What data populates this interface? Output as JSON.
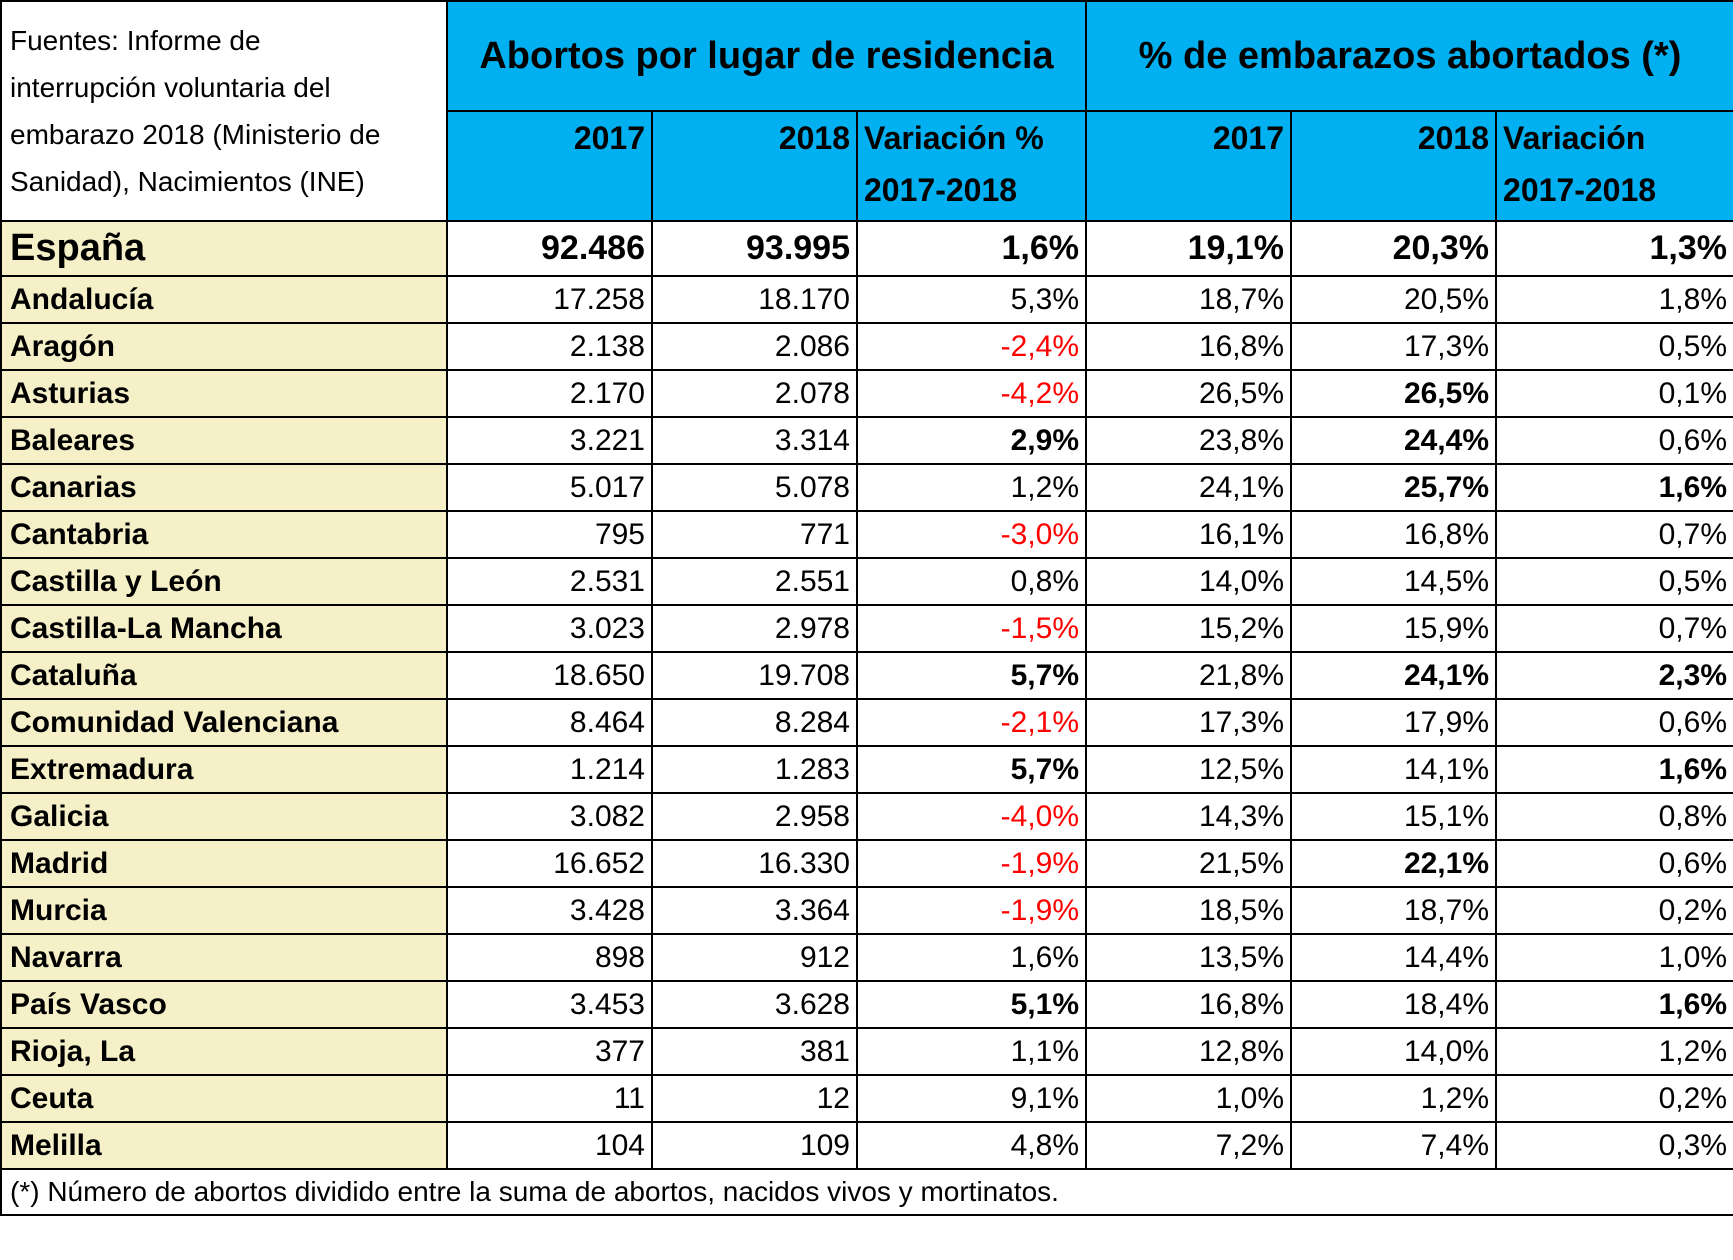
{
  "sources_lines": [
    "Fuentes: Informe de",
    "interrupción voluntaria del",
    "embarazo 2018 (Ministerio de",
    "Sanidad), Nacimientos (INE)"
  ],
  "group_headers": [
    "Abortos por lugar de residencia",
    "% de embarazos abortados (*)"
  ],
  "columns": [
    {
      "line1": "2017",
      "line2": ""
    },
    {
      "line1": "2018",
      "line2": ""
    },
    {
      "line1": "Variación %",
      "line2": "2017-2018"
    },
    {
      "line1": "2017",
      "line2": ""
    },
    {
      "line1": "2018",
      "line2": ""
    },
    {
      "line1": "Variación",
      "line2": "2017-2018"
    }
  ],
  "rows": [
    {
      "region": "España",
      "cells": [
        "92.486",
        "93.995",
        "1,6%",
        "19,1%",
        "20,3%",
        "1,3%"
      ]
    },
    {
      "region": "Andalucía",
      "cells": [
        "17.258",
        "18.170",
        "5,3%",
        "18,7%",
        "20,5%",
        "1,8%"
      ]
    },
    {
      "region": "Aragón",
      "cells": [
        "2.138",
        "2.086",
        "-2,4%",
        "16,8%",
        "17,3%",
        "0,5%"
      ]
    },
    {
      "region": "Asturias",
      "cells": [
        "2.170",
        "2.078",
        "-4,2%",
        "26,5%",
        "26,5%",
        "0,1%"
      ]
    },
    {
      "region": "Baleares",
      "cells": [
        "3.221",
        "3.314",
        "2,9%",
        "23,8%",
        "24,4%",
        "0,6%"
      ]
    },
    {
      "region": "Canarias",
      "cells": [
        "5.017",
        "5.078",
        "1,2%",
        "24,1%",
        "25,7%",
        "1,6%"
      ]
    },
    {
      "region": "Cantabria",
      "cells": [
        "795",
        "771",
        "-3,0%",
        "16,1%",
        "16,8%",
        "0,7%"
      ]
    },
    {
      "region": "Castilla y León",
      "cells": [
        "2.531",
        "2.551",
        "0,8%",
        "14,0%",
        "14,5%",
        "0,5%"
      ]
    },
    {
      "region": "Castilla-La Mancha",
      "cells": [
        "3.023",
        "2.978",
        "-1,5%",
        "15,2%",
        "15,9%",
        "0,7%"
      ]
    },
    {
      "region": "Cataluña",
      "cells": [
        "18.650",
        "19.708",
        "5,7%",
        "21,8%",
        "24,1%",
        "2,3%"
      ]
    },
    {
      "region": "Comunidad Valenciana",
      "cells": [
        "8.464",
        "8.284",
        "-2,1%",
        "17,3%",
        "17,9%",
        "0,6%"
      ]
    },
    {
      "region": "Extremadura",
      "cells": [
        "1.214",
        "1.283",
        "5,7%",
        "12,5%",
        "14,1%",
        "1,6%"
      ]
    },
    {
      "region": "Galicia",
      "cells": [
        "3.082",
        "2.958",
        "-4,0%",
        "14,3%",
        "15,1%",
        "0,8%"
      ]
    },
    {
      "region": "Madrid",
      "cells": [
        "16.652",
        "16.330",
        "-1,9%",
        "21,5%",
        "22,1%",
        "0,6%"
      ]
    },
    {
      "region": "Murcia",
      "cells": [
        "3.428",
        "3.364",
        "-1,9%",
        "18,5%",
        "18,7%",
        "0,2%"
      ]
    },
    {
      "region": "Navarra",
      "cells": [
        "898",
        "912",
        "1,6%",
        "13,5%",
        "14,4%",
        "1,0%"
      ]
    },
    {
      "region": "País Vasco",
      "cells": [
        "3.453",
        "3.628",
        "5,1%",
        "16,8%",
        "18,4%",
        "1,6%"
      ]
    },
    {
      "region": "Rioja, La",
      "cells": [
        "377",
        "381",
        "1,1%",
        "12,8%",
        "14,0%",
        "1,2%"
      ]
    },
    {
      "region": "Ceuta",
      "cells": [
        "11",
        "12",
        "9,1%",
        "1,0%",
        "1,2%",
        "0,2%"
      ]
    },
    {
      "region": "Melilla",
      "cells": [
        "104",
        "109",
        "4,8%",
        "7,2%",
        "7,4%",
        "0,3%"
      ]
    }
  ],
  "footnote": "(*) Número de abortos dividido entre la suma de abortos, nacidos vivos y mortinatos.",
  "colors": {
    "header_bg": "#00b0f0",
    "region_bg": "#f5f0c8",
    "negative": "#ff0000"
  }
}
